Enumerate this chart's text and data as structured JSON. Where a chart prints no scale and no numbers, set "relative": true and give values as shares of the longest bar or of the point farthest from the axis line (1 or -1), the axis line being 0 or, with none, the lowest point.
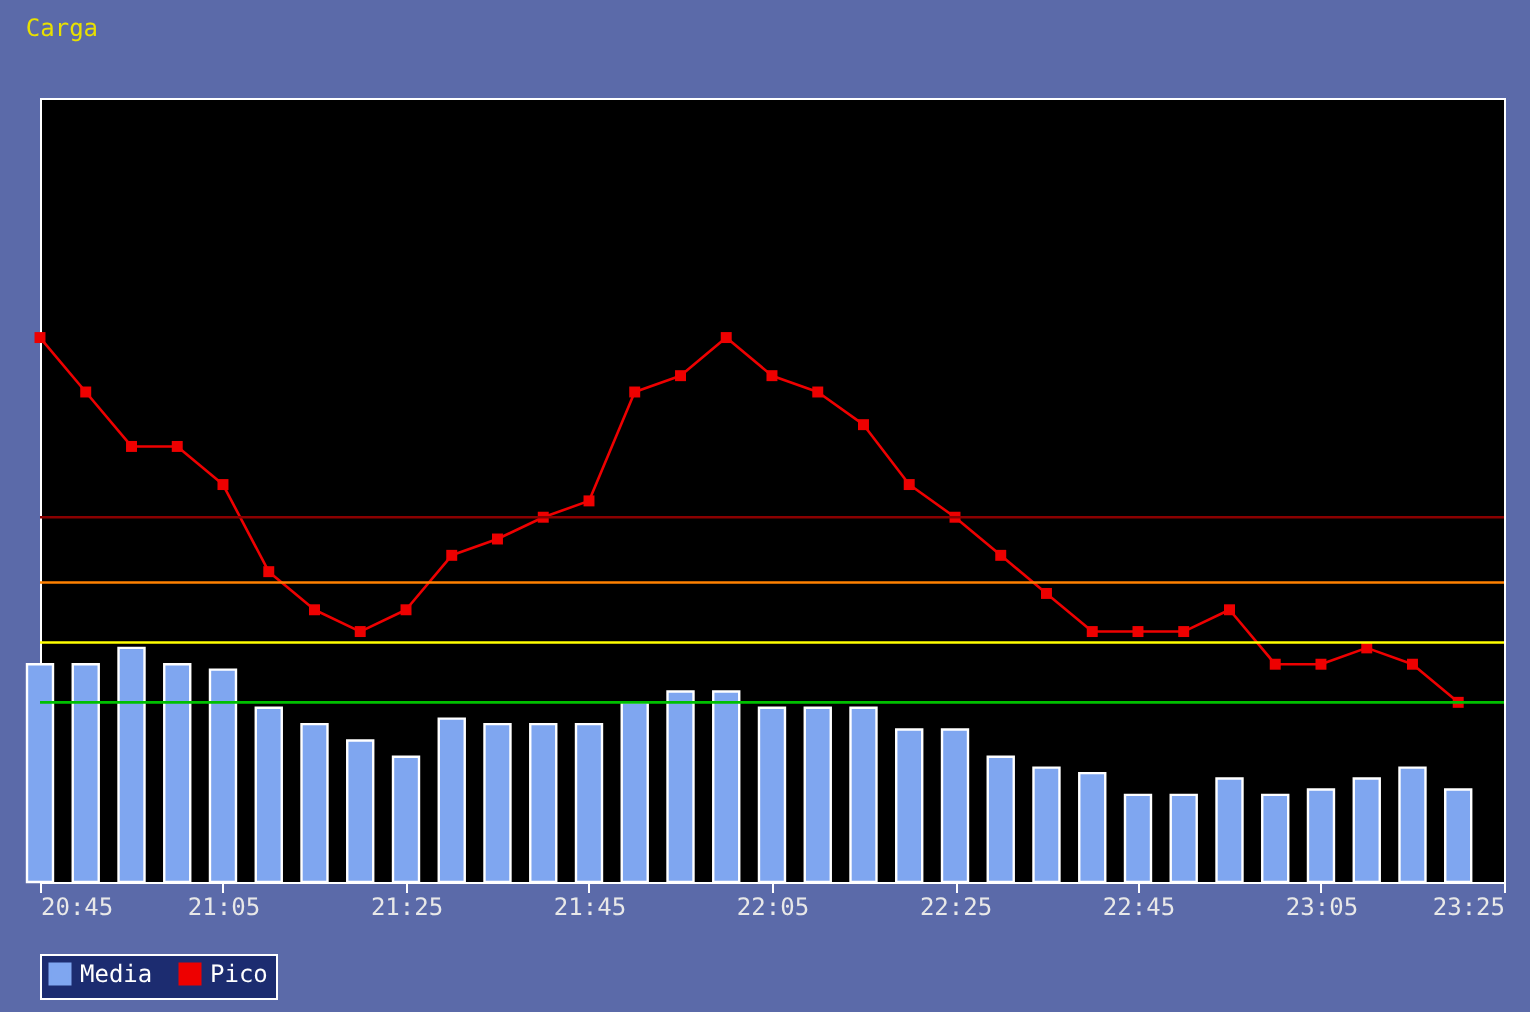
{
  "chart_data": {
    "type": "bar",
    "title": "Carga",
    "relative": true,
    "x": [
      20.75,
      20.8333,
      20.9167,
      21,
      21.0833,
      21.1667,
      21.25,
      21.3333,
      21.4167,
      21.5,
      21.5833,
      21.6667,
      21.75,
      21.8333,
      21.9167,
      22,
      22.0833,
      22.1667,
      22.25,
      22.3333,
      22.4167,
      22.5,
      22.5833,
      22.6667,
      22.75,
      22.8333,
      22.9167,
      23,
      23.0833,
      23.1667,
      23.25,
      23.3333
    ],
    "xlim": [
      20.75,
      23.4167
    ],
    "xticks": [
      {
        "value": 20.75,
        "label": "20:45"
      },
      {
        "value": 21.0833,
        "label": "21:05"
      },
      {
        "value": 21.4167,
        "label": "21:25"
      },
      {
        "value": 21.75,
        "label": "21:45"
      },
      {
        "value": 22.0833,
        "label": "22:05"
      },
      {
        "value": 22.4167,
        "label": "22:25"
      },
      {
        "value": 22.75,
        "label": "22:45"
      },
      {
        "value": 23.0833,
        "label": "23:05"
      },
      {
        "value": 23.4167,
        "label": "23:25"
      }
    ],
    "series": [
      {
        "name": "Media",
        "color": "#7fa6f0",
        "values": [
          0.4,
          0.4,
          0.43,
          0.4,
          0.39,
          0.32,
          0.29,
          0.26,
          0.23,
          0.3,
          0.29,
          0.29,
          0.29,
          0.33,
          0.35,
          0.35,
          0.32,
          0.32,
          0.32,
          0.28,
          0.28,
          0.23,
          0.21,
          0.2,
          0.16,
          0.16,
          0.19,
          0.16,
          0.17,
          0.19,
          0.21,
          0.17
        ]
      },
      {
        "name": "Pico",
        "type": "line",
        "color": "#ee0000",
        "marker": "square",
        "line_style": "solid",
        "values": [
          1.0,
          0.9,
          0.8,
          0.8,
          0.73,
          0.57,
          0.5,
          0.46,
          0.5,
          0.6,
          0.63,
          0.67,
          0.7,
          0.9,
          0.93,
          1.0,
          0.93,
          0.9,
          0.84,
          0.73,
          0.67,
          0.6,
          0.53,
          0.46,
          0.46,
          0.46,
          0.5,
          0.4,
          0.4,
          0.43,
          0.4,
          0.33
        ]
      }
    ],
    "ref_lines": [
      {
        "axis": "y",
        "value": 0.67,
        "color": "#8b0000"
      },
      {
        "axis": "y",
        "value": 0.55,
        "color": "#ff8000"
      },
      {
        "axis": "y",
        "value": 0.44,
        "color": "#ffff00"
      },
      {
        "axis": "y",
        "value": 0.33,
        "color": "#00c000"
      }
    ],
    "grid": false,
    "legend": "bottom"
  }
}
